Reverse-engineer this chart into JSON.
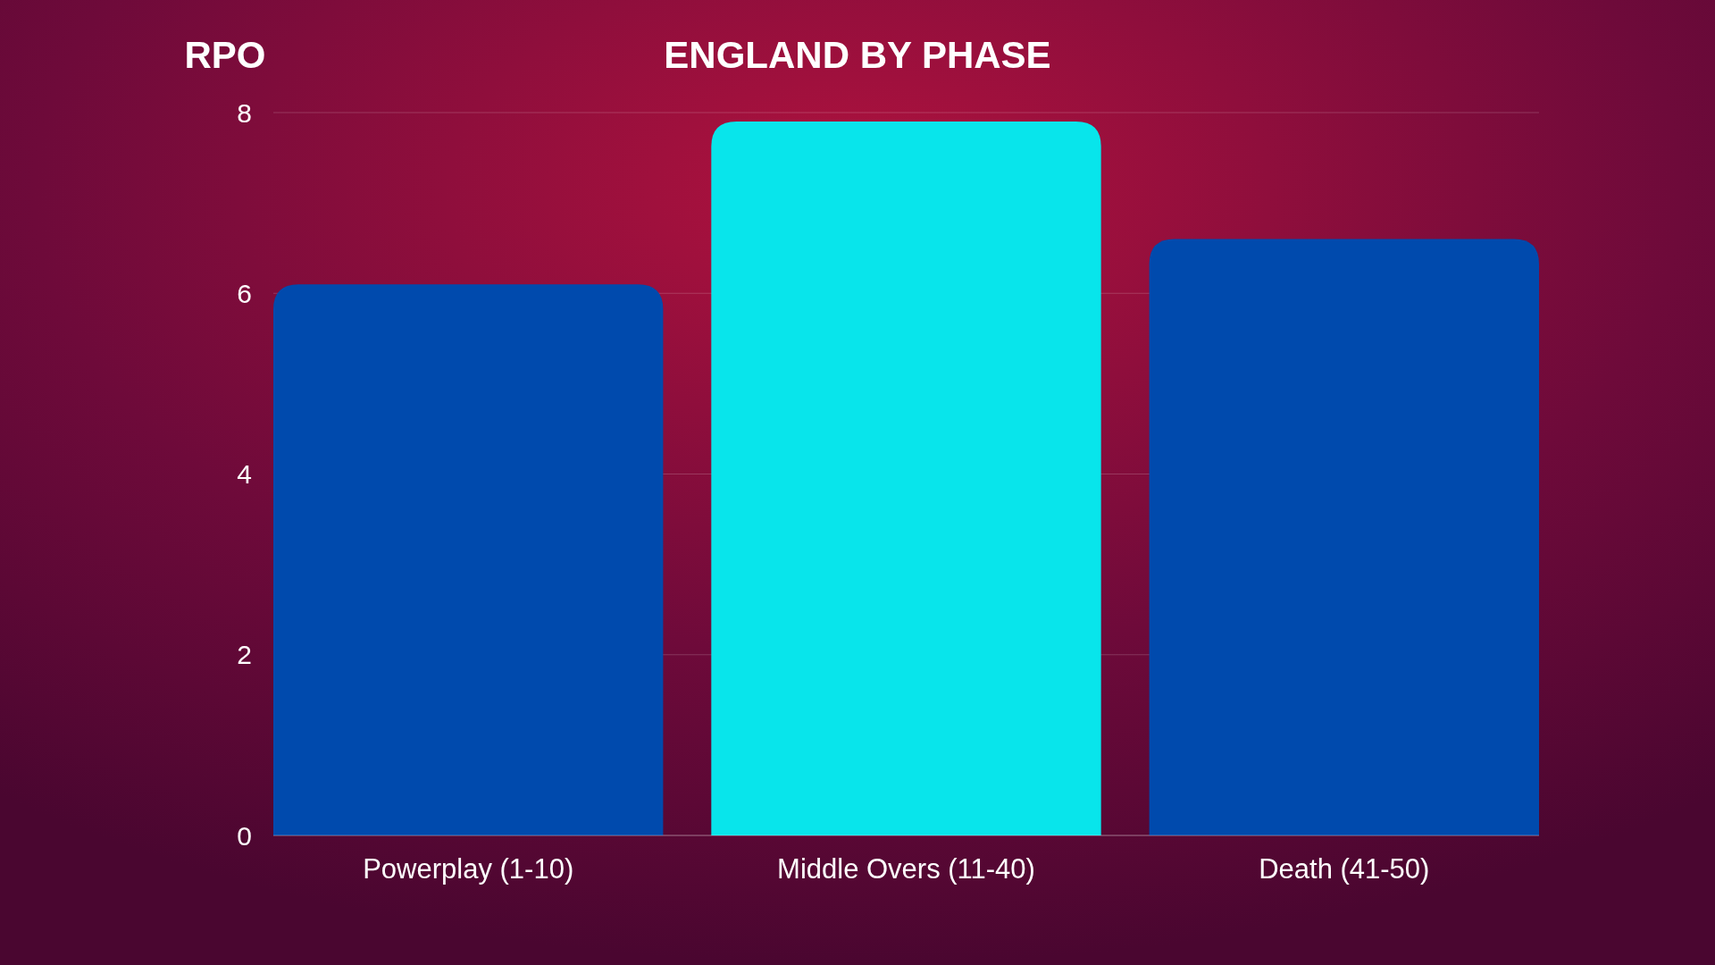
{
  "chart_data": {
    "type": "bar",
    "title": "ENGLAND BY PHASE",
    "ylabel": "RPO",
    "categories": [
      "Powerplay (1-10)",
      "Middle Overs (11-40)",
      "Death (41-50)"
    ],
    "values": [
      6.1,
      7.9,
      6.6
    ],
    "colors": [
      "#004aad",
      "#08e5eb",
      "#004aad"
    ],
    "ylim": [
      0,
      8
    ],
    "yticks": [
      0,
      2,
      4,
      6,
      8
    ],
    "grid": "y"
  }
}
